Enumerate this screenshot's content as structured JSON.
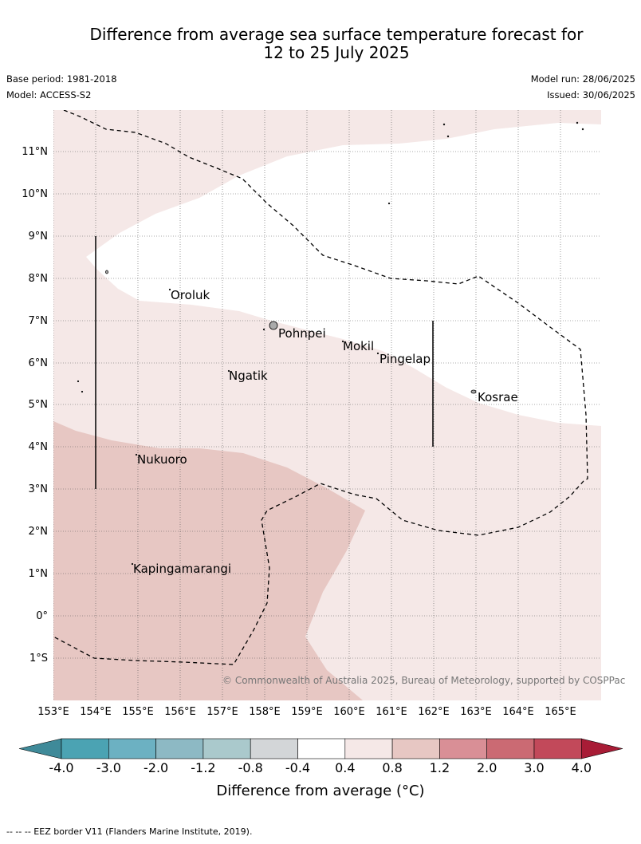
{
  "title": {
    "line1": "Difference from average sea surface temperature forecast for",
    "line2": "12 to 25 July 2025"
  },
  "meta": {
    "base_period": "Base period: 1981-2018",
    "model": "Model: ACCESS-S2",
    "model_run": "Model run: 28/06/2025",
    "issued": "Issued: 30/06/2025"
  },
  "map": {
    "lon_ticks": [
      "153°E",
      "154°E",
      "155°E",
      "156°E",
      "157°E",
      "158°E",
      "159°E",
      "160°E",
      "161°E",
      "162°E",
      "163°E",
      "164°E",
      "165°E"
    ],
    "lat_ticks": [
      "11°N",
      "10°N",
      "9°N",
      "8°N",
      "7°N",
      "6°N",
      "5°N",
      "4°N",
      "3°N",
      "2°N",
      "1°N",
      "0°",
      "1°S"
    ],
    "places": [
      {
        "name": "Oroluk"
      },
      {
        "name": "Pohnpei"
      },
      {
        "name": "Mokil"
      },
      {
        "name": "Pingelap"
      },
      {
        "name": "Ngatik"
      },
      {
        "name": "Kosrae"
      },
      {
        "name": "Nukuoro"
      },
      {
        "name": "Kapingamarangi"
      }
    ],
    "copyright": "© Commonwealth of Australia 2025, Bureau of Meteorology, supported by COSPPac",
    "colors": {
      "band_0.4_0.8": "#f5e8e7",
      "band_0.8_1.2": "#e7c7c3",
      "band_-0.4_0.4": "#ffffff"
    }
  },
  "colorbar": {
    "label": "Difference from average (°C)",
    "ticks": [
      "-4.0",
      "-3.0",
      "-2.0",
      "-1.2",
      "-0.8",
      "-0.4",
      "0.4",
      "0.8",
      "1.2",
      "2.0",
      "3.0",
      "4.0"
    ],
    "colors": [
      "#3f8a99",
      "#4ba3b3",
      "#6cb1c2",
      "#8db9c4",
      "#aac9cc",
      "#d3d6d8",
      "#ffffff",
      "#f5e8e7",
      "#e7c7c3",
      "#d98f96",
      "#cb6a73",
      "#c2495a",
      "#a81c36"
    ]
  },
  "footnote": "--  --  -- EEZ border V11 (Flanders Marine Institute, 2019)."
}
